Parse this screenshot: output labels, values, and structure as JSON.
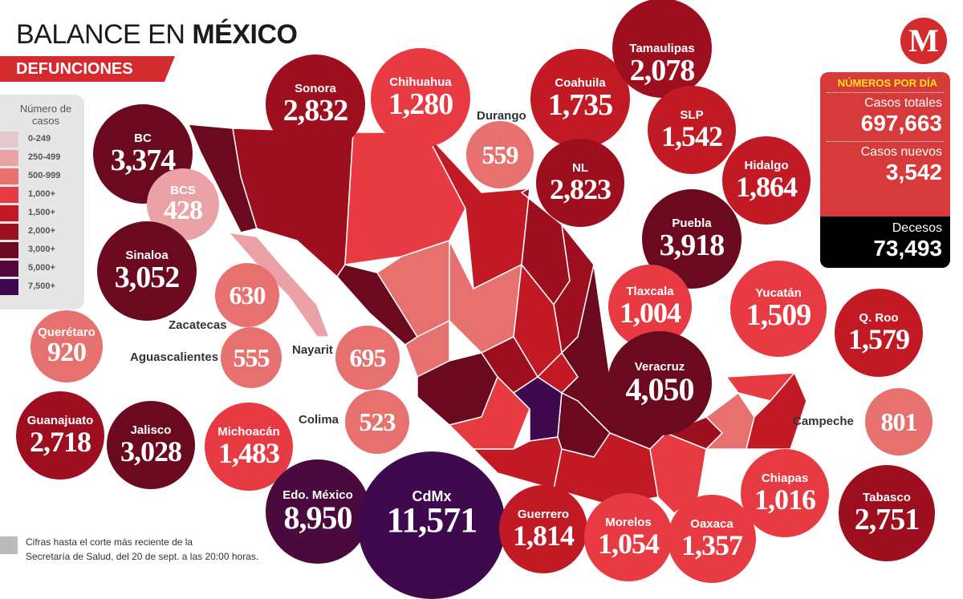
{
  "header": {
    "title_light": "BALANCE EN",
    "title_bold": "MÉXICO",
    "subtitle": "DEFUNCIONES",
    "logo": "M"
  },
  "legend": {
    "title": "Número de casos",
    "items": [
      {
        "label": "0-249",
        "color": "#e2c9cd"
      },
      {
        "label": "250-499",
        "color": "#eaa2a6"
      },
      {
        "label": "500-999",
        "color": "#e6716e"
      },
      {
        "label": "1,000+",
        "color": "#e73a42"
      },
      {
        "label": "1,500+",
        "color": "#c11a25"
      },
      {
        "label": "2,000+",
        "color": "#9d0f1f"
      },
      {
        "label": "3,000+",
        "color": "#6b0a1f"
      },
      {
        "label": "5,000+",
        "color": "#55083a"
      },
      {
        "label": "7,500+",
        "color": "#3e0a4d"
      }
    ]
  },
  "stats": {
    "heading": "NÚMEROS POR DÍA",
    "total_label": "Casos totales",
    "total": "697,663",
    "new_label": "Casos nuevos",
    "new": "3,542",
    "deaths_label": "Decesos",
    "deaths": "73,493"
  },
  "states": {
    "bc": {
      "name": "BC",
      "value": "3,374"
    },
    "sonora": {
      "name": "Sonora",
      "value": "2,832"
    },
    "chihuahua": {
      "name": "Chihuahua",
      "value": "1,280"
    },
    "durango": {
      "name": "Durango",
      "value": "559"
    },
    "coahuila": {
      "name": "Coahuila",
      "value": "1,735"
    },
    "tamaulipas": {
      "name": "Tamaulipas",
      "value": "2,078"
    },
    "nl": {
      "name": "NL",
      "value": "2,823"
    },
    "slp": {
      "name": "SLP",
      "value": "1,542"
    },
    "hidalgo": {
      "name": "Hidalgo",
      "value": "1,864"
    },
    "puebla": {
      "name": "Puebla",
      "value": "3,918"
    },
    "bcs": {
      "name": "BCS",
      "value": "428"
    },
    "sinaloa": {
      "name": "Sinaloa",
      "value": "3,052"
    },
    "zacatecas": {
      "name": "Zacatecas",
      "value": "630"
    },
    "aguascalientes": {
      "name": "Aguascalientes",
      "value": "555"
    },
    "nayarit": {
      "name": "Nayarit",
      "value": "695"
    },
    "queretaro": {
      "name": "Querétaro",
      "value": "920"
    },
    "guanajuato": {
      "name": "Guanajuato",
      "value": "2,718"
    },
    "jalisco": {
      "name": "Jalisco",
      "value": "3,028"
    },
    "michoacan": {
      "name": "Michoacán",
      "value": "1,483"
    },
    "colima": {
      "name": "Colima",
      "value": "523"
    },
    "tlaxcala": {
      "name": "Tlaxcala",
      "value": "1,004"
    },
    "yucatan": {
      "name": "Yucatán",
      "value": "1,509"
    },
    "qroo": {
      "name": "Q. Roo",
      "value": "1,579"
    },
    "veracruz": {
      "name": "Veracruz",
      "value": "4,050"
    },
    "campeche": {
      "name": "Campeche",
      "value": "801"
    },
    "edomex": {
      "name": "Edo. México",
      "value": "8,950"
    },
    "cdmx": {
      "name": "CdMx",
      "value": "11,571"
    },
    "guerrero": {
      "name": "Guerrero",
      "value": "1,814"
    },
    "morelos": {
      "name": "Morelos",
      "value": "1,054"
    },
    "oaxaca": {
      "name": "Oaxaca",
      "value": "1,357"
    },
    "chiapas": {
      "name": "Chiapas",
      "value": "1,016"
    },
    "tabasco": {
      "name": "Tabasco",
      "value": "2,751"
    }
  },
  "footnote": {
    "line1": "Cifras hasta el corte más reciente de la",
    "line2": "Secretaría de Salud, del 20 de sept. a las 20:00 horas."
  }
}
